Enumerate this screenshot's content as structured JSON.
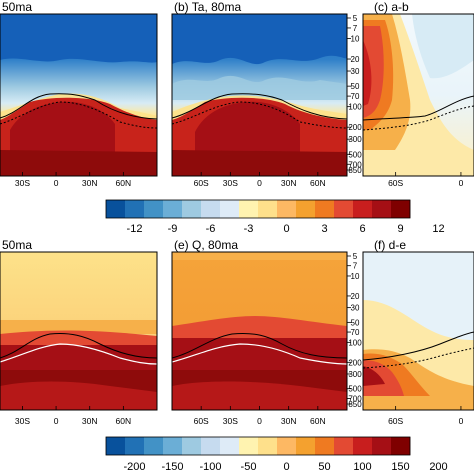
{
  "chart_data": [
    {
      "type": "heatmap",
      "title": "50ma",
      "xticks": [
        "30S",
        "0",
        "30N",
        "60N"
      ],
      "colormap": "temperature"
    },
    {
      "type": "heatmap",
      "title": "(b) Ta, 80ma",
      "xticks": [
        "60S",
        "30S",
        "0",
        "30N",
        "60N"
      ],
      "yticks": [
        "5",
        "7",
        "10",
        "20",
        "30",
        "50",
        "70",
        "100",
        "200",
        "300",
        "500",
        "700",
        "850"
      ],
      "ylim": [
        5,
        850
      ],
      "yscale": "log-pressure",
      "colormap": "temperature"
    },
    {
      "type": "heatmap",
      "title": "(c) a-b",
      "xticks": [
        "60S",
        "0"
      ],
      "colormap": "difference"
    },
    {
      "type": "heatmap",
      "title": "50ma",
      "xticks": [
        "30S",
        "0",
        "30N",
        "60N"
      ],
      "colormap": "moisture"
    },
    {
      "type": "heatmap",
      "title": "(e) Q, 80ma",
      "xticks": [
        "60S",
        "30S",
        "0",
        "30N",
        "60N"
      ],
      "yticks": [
        "5",
        "7",
        "10",
        "20",
        "30",
        "50",
        "70",
        "100",
        "200",
        "300",
        "500",
        "700",
        "850"
      ],
      "ylim": [
        5,
        850
      ],
      "yscale": "log-pressure",
      "colormap": "moisture"
    },
    {
      "type": "heatmap",
      "title": "(f) d-e",
      "xticks": [
        "60S",
        "0"
      ],
      "colormap": "difference"
    }
  ],
  "colorbars": [
    {
      "labels": [
        "-12",
        "-9",
        "-6",
        "-3",
        "0",
        "3",
        "6",
        "9",
        "12"
      ],
      "colors": [
        "#08519c",
        "#2171b5",
        "#4292c6",
        "#6baed6",
        "#9ecae1",
        "#c6dbef",
        "#deebf7",
        "#fff3b0",
        "#fee08b",
        "#fdb863",
        "#f4a12f",
        "#ef7a21",
        "#e34a33",
        "#c81e1e",
        "#a50f15",
        "#7f0000"
      ]
    },
    {
      "labels": [
        "-200",
        "-150",
        "-100",
        "-50",
        "0",
        "50",
        "100",
        "150",
        "200"
      ],
      "colors": [
        "#08519c",
        "#2171b5",
        "#4292c6",
        "#6baed6",
        "#9ecae1",
        "#c6dbef",
        "#deebf7",
        "#fff3b0",
        "#fee08b",
        "#fdb863",
        "#f4a12f",
        "#ef7a21",
        "#e34a33",
        "#c81e1e",
        "#a50f15",
        "#7f0000"
      ]
    }
  ]
}
